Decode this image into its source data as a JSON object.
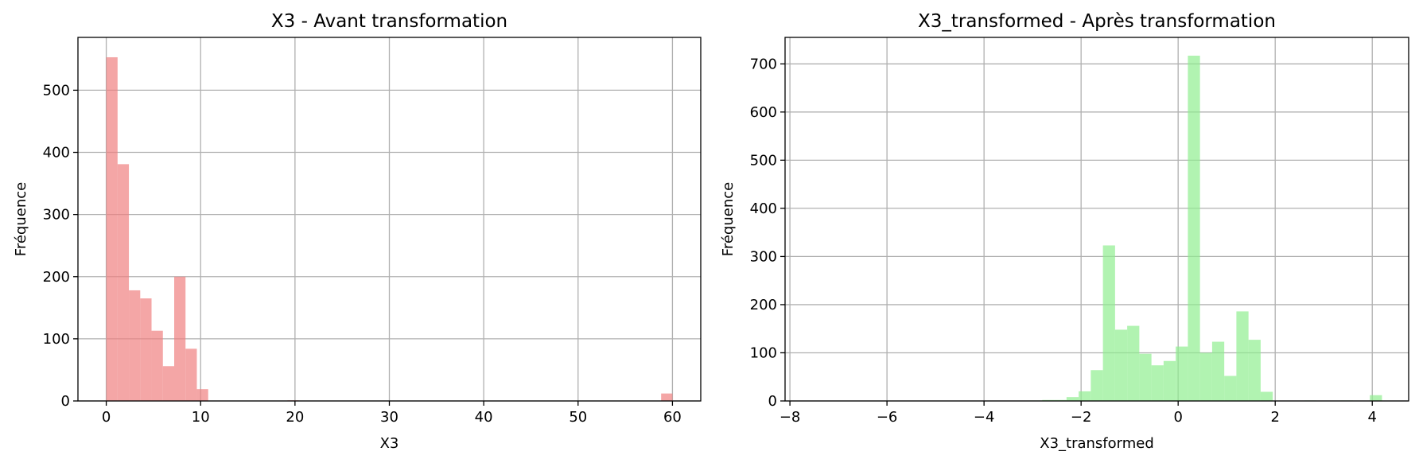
{
  "chart_data": [
    {
      "type": "histogram",
      "title": "X3 - Avant transformation",
      "xlabel": "X3",
      "ylabel": "Fréquence",
      "xlim": [
        -3,
        63
      ],
      "ylim": [
        0,
        585
      ],
      "xticks": [
        0,
        10,
        20,
        30,
        40,
        50,
        60
      ],
      "yticks": [
        0,
        100,
        200,
        300,
        400,
        500
      ],
      "grid": true,
      "bar_color": "#f08080",
      "bar_opacity": 0.7,
      "bins": [
        {
          "x0": 0.0,
          "x1": 1.2,
          "count": 553
        },
        {
          "x0": 1.2,
          "x1": 2.4,
          "count": 381
        },
        {
          "x0": 2.4,
          "x1": 3.6,
          "count": 178
        },
        {
          "x0": 3.6,
          "x1": 4.8,
          "count": 165
        },
        {
          "x0": 4.8,
          "x1": 6.0,
          "count": 113
        },
        {
          "x0": 6.0,
          "x1": 7.2,
          "count": 56
        },
        {
          "x0": 7.2,
          "x1": 8.4,
          "count": 200
        },
        {
          "x0": 8.4,
          "x1": 9.6,
          "count": 84
        },
        {
          "x0": 9.6,
          "x1": 10.8,
          "count": 19
        },
        {
          "x0": 19.2,
          "x1": 20.4,
          "count": 1
        },
        {
          "x0": 58.8,
          "x1": 60.0,
          "count": 12
        }
      ]
    },
    {
      "type": "histogram",
      "title": "X3_transformed - Après transformation",
      "xlabel": "X3_transformed",
      "ylabel": "Fréquence",
      "xlim": [
        -8.1,
        4.75
      ],
      "ylim": [
        0,
        755
      ],
      "xticks": [
        -8,
        -6,
        -4,
        -2,
        0,
        2,
        4
      ],
      "xtick_labels": [
        "−8",
        "−6",
        "−4",
        "−2",
        "0",
        "2",
        "4"
      ],
      "yticks": [
        0,
        100,
        200,
        300,
        400,
        500,
        600,
        700
      ],
      "grid": true,
      "bar_color": "#90ee90",
      "bar_opacity": 0.7,
      "bins": [
        {
          "x0": -3.05,
          "x1": -2.8,
          "count": 1
        },
        {
          "x0": -2.8,
          "x1": -2.55,
          "count": 2
        },
        {
          "x0": -2.55,
          "x1": -2.3,
          "count": 2
        },
        {
          "x0": -2.3,
          "x1": -2.05,
          "count": 8
        },
        {
          "x0": -2.05,
          "x1": -1.8,
          "count": 20
        },
        {
          "x0": -1.8,
          "x1": -1.55,
          "count": 64
        },
        {
          "x0": -1.55,
          "x1": -1.3,
          "count": 323
        },
        {
          "x0": -1.3,
          "x1": -1.05,
          "count": 148
        },
        {
          "x0": -1.05,
          "x1": -0.8,
          "count": 156
        },
        {
          "x0": -0.8,
          "x1": -0.55,
          "count": 98
        },
        {
          "x0": -0.55,
          "x1": -0.3,
          "count": 74
        },
        {
          "x0": -0.3,
          "x1": -0.05,
          "count": 83
        },
        {
          "x0": -0.05,
          "x1": 0.2,
          "count": 113
        },
        {
          "x0": 0.2,
          "x1": 0.45,
          "count": 717
        },
        {
          "x0": 0.45,
          "x1": 0.7,
          "count": 100
        },
        {
          "x0": 0.7,
          "x1": 0.95,
          "count": 123
        },
        {
          "x0": 0.95,
          "x1": 1.2,
          "count": 52
        },
        {
          "x0": 1.2,
          "x1": 1.45,
          "count": 186
        },
        {
          "x0": 1.45,
          "x1": 1.7,
          "count": 127
        },
        {
          "x0": 1.7,
          "x1": 1.95,
          "count": 19
        },
        {
          "x0": 2.6,
          "x1": 2.85,
          "count": 1
        },
        {
          "x0": 3.35,
          "x1": 3.6,
          "count": 1
        },
        {
          "x0": 3.95,
          "x1": 4.2,
          "count": 12
        }
      ]
    }
  ]
}
